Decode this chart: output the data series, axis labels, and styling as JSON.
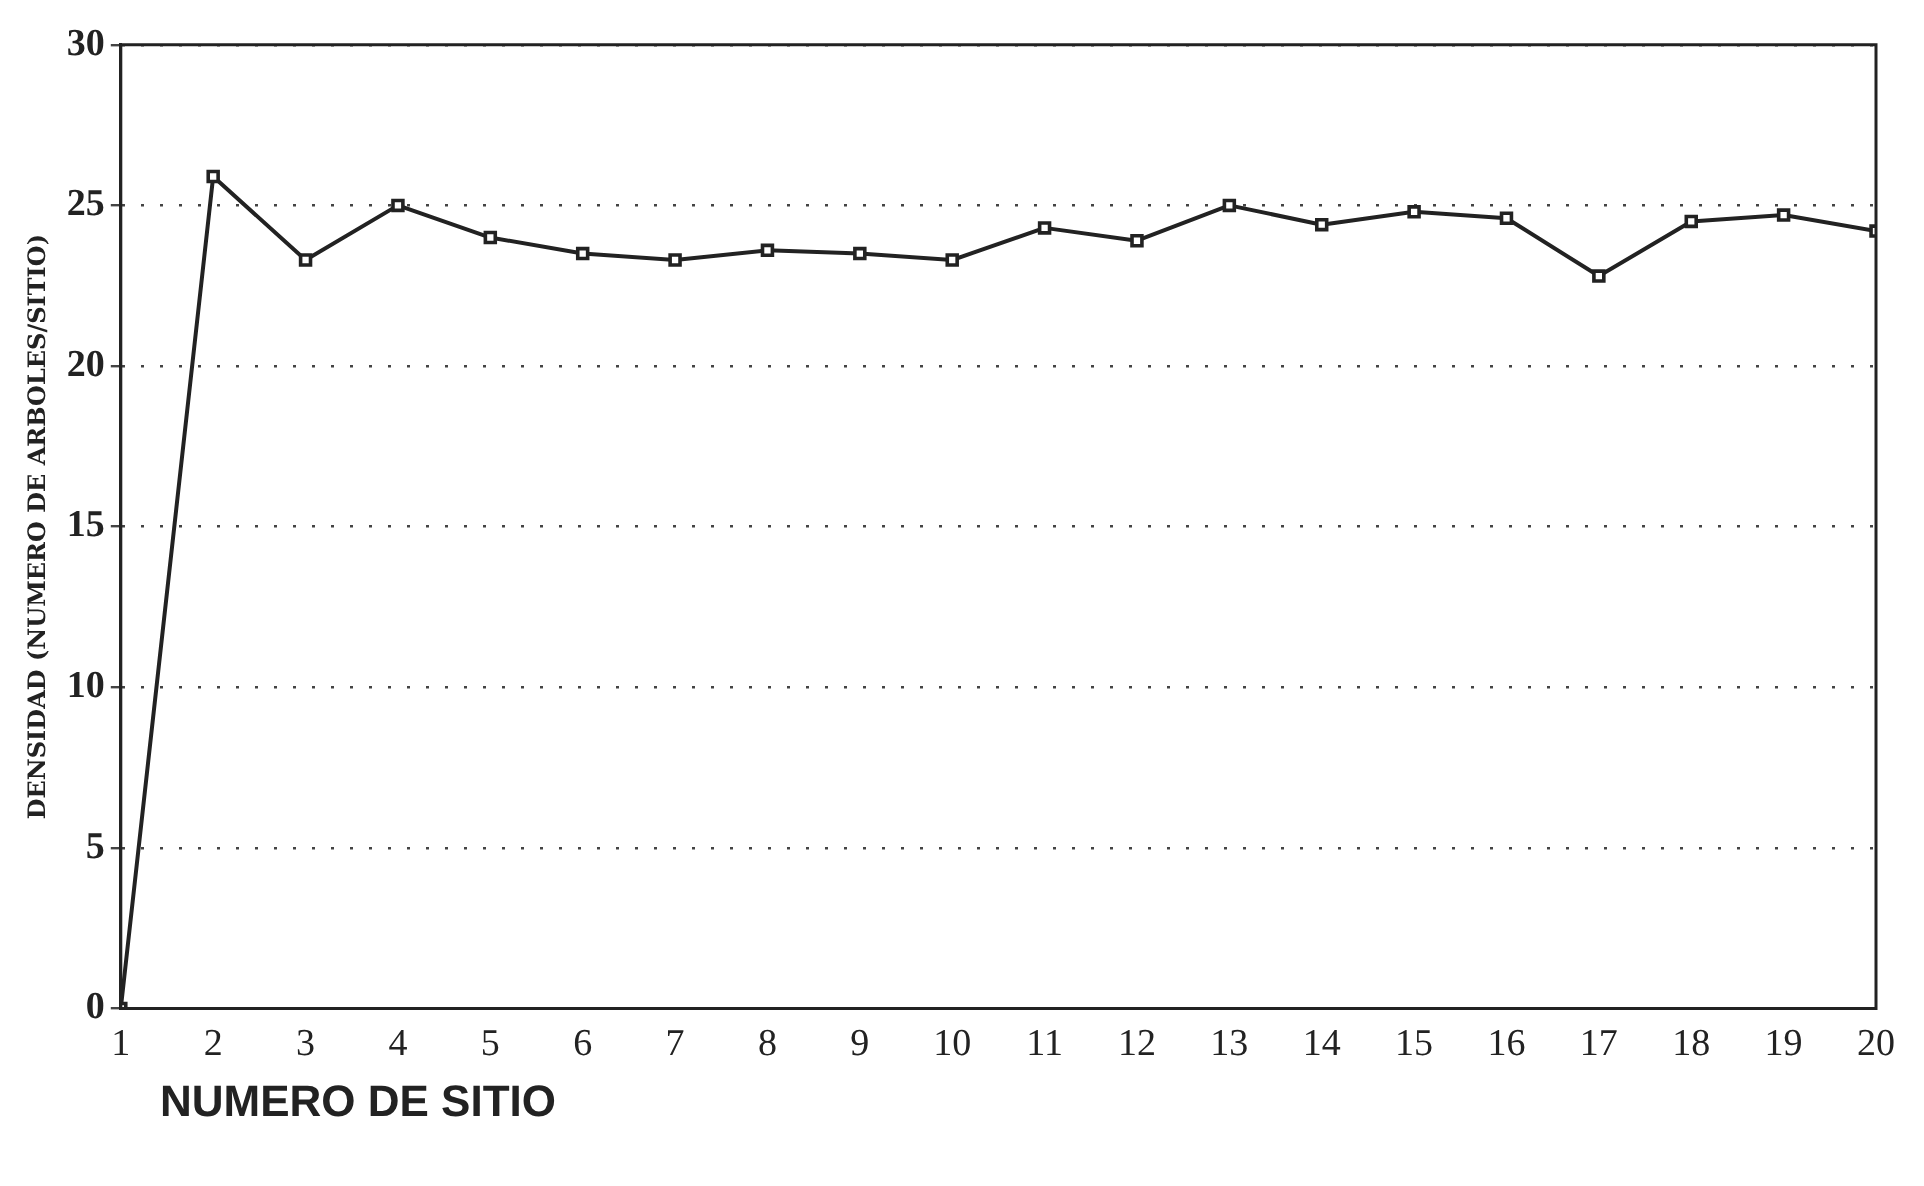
{
  "chart_data": {
    "type": "line",
    "xlabel": "NUMERO DE SITIO",
    "ylabel": "DENSIDAD (NUMERO DE ARBOLES/SITIO)",
    "x": [
      1,
      2,
      3,
      4,
      5,
      6,
      7,
      8,
      9,
      10,
      11,
      12,
      13,
      14,
      15,
      16,
      17,
      18,
      19,
      20
    ],
    "series": [
      {
        "color": "#222222",
        "values": [
          0,
          25.9,
          23.3,
          25.0,
          24.0,
          23.5,
          23.3,
          23.6,
          23.5,
          23.3,
          24.3,
          23.9,
          25.0,
          24.4,
          24.8,
          24.6,
          22.8,
          24.5,
          24.7,
          24.2
        ]
      }
    ],
    "xlim": [
      1,
      20
    ],
    "xticks": [
      1,
      2,
      3,
      4,
      5,
      6,
      7,
      8,
      9,
      10,
      11,
      12,
      13,
      14,
      15,
      16,
      17,
      18,
      19,
      20
    ],
    "ylim": [
      0,
      30
    ],
    "yticks": [
      0,
      5,
      10,
      15,
      20,
      25,
      30
    ],
    "grid": "y",
    "legend": false,
    "marker": "square",
    "line_style": "solid"
  }
}
